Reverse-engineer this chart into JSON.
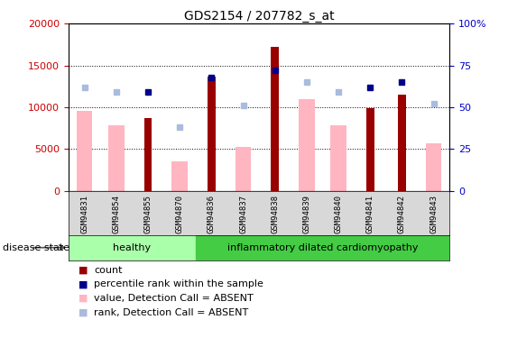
{
  "title": "GDS2154 / 207782_s_at",
  "samples": [
    "GSM94831",
    "GSM94854",
    "GSM94855",
    "GSM94870",
    "GSM94836",
    "GSM94837",
    "GSM94838",
    "GSM94839",
    "GSM94840",
    "GSM94841",
    "GSM94842",
    "GSM94843"
  ],
  "healthy_count": 4,
  "groups": [
    "healthy",
    "inflammatory dilated cardiomyopathy"
  ],
  "counts": [
    null,
    null,
    8700,
    null,
    13700,
    null,
    17200,
    null,
    null,
    9900,
    11500,
    null
  ],
  "counts_absent": [
    9600,
    7800,
    null,
    3500,
    null,
    5300,
    null,
    11000,
    7900,
    null,
    null,
    5700
  ],
  "percentile_ranks": [
    null,
    null,
    59,
    null,
    68,
    null,
    72,
    null,
    null,
    62,
    65,
    null
  ],
  "percentile_ranks_absent": [
    62,
    59,
    null,
    38,
    null,
    51,
    null,
    65,
    59,
    null,
    null,
    52
  ],
  "ylim_left": [
    0,
    20000
  ],
  "ylim_right": [
    0,
    100
  ],
  "yticks_left": [
    0,
    5000,
    10000,
    15000,
    20000
  ],
  "yticks_right": [
    0,
    25,
    50,
    75,
    100
  ],
  "ytick_labels_right": [
    "0",
    "25",
    "50",
    "75",
    "100%"
  ],
  "bar_color_present": "#990000",
  "bar_color_absent": "#FFB6C1",
  "dot_color_present": "#00008B",
  "dot_color_absent": "#AABBDD",
  "healthy_color": "#AAFFAA",
  "disease_color": "#44CC44",
  "tick_label_color_left": "#CC0000",
  "tick_label_color_right": "#0000CC",
  "legend_items": [
    {
      "color": "#990000",
      "label": "count"
    },
    {
      "color": "#00008B",
      "label": "percentile rank within the sample"
    },
    {
      "color": "#FFB6C1",
      "label": "value, Detection Call = ABSENT"
    },
    {
      "color": "#AABBDD",
      "label": "rank, Detection Call = ABSENT"
    }
  ]
}
